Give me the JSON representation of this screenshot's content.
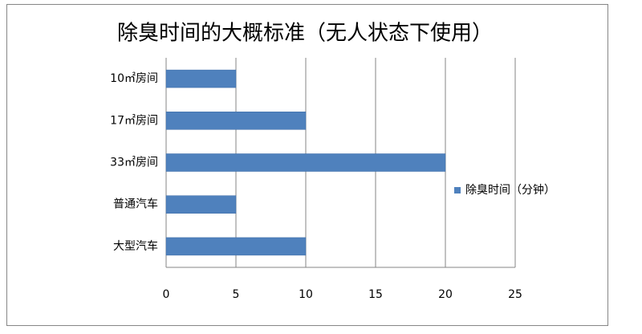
{
  "chart_data": {
    "type": "bar",
    "orientation": "horizontal",
    "title": "除臭时间的大概标准（无人状态下使用）",
    "categories": [
      "10㎡房间",
      "17㎡房间",
      "33㎡房间",
      "普通汽车",
      "大型汽车"
    ],
    "series": [
      {
        "name": "除臭时间（分钟）",
        "color": "#4f81bd",
        "values": [
          5,
          10,
          20,
          5,
          10
        ]
      }
    ],
    "xlim": [
      0,
      25
    ],
    "xticks": [
      0,
      5,
      10,
      15,
      20,
      25
    ],
    "grid": true,
    "legend": "right"
  }
}
